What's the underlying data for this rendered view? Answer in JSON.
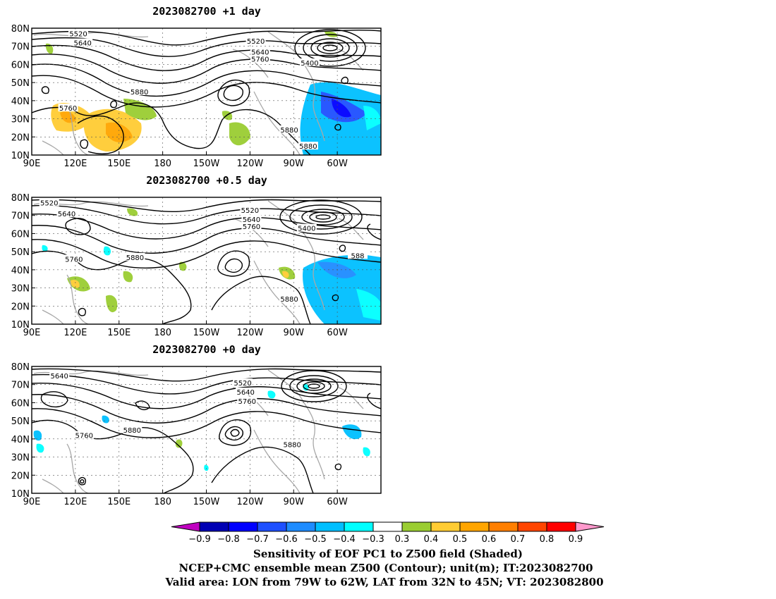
{
  "chart_data": [
    {
      "type": "map",
      "title": "2023082700  +1 day",
      "x_ticks": [
        "90E",
        "120E",
        "150E",
        "180",
        "150W",
        "120W",
        "90W",
        "60W"
      ],
      "y_ticks": [
        "80N",
        "70N",
        "60N",
        "50N",
        "40N",
        "30N",
        "20N",
        "10N"
      ],
      "contour_labels": [
        {
          "text": "5520",
          "lon": 122,
          "lat": 77
        },
        {
          "text": "5640",
          "lon": 125,
          "lat": 72
        },
        {
          "text": "5760",
          "lon": 115,
          "lat": 36
        },
        {
          "text": "5880",
          "lon": 164,
          "lat": 45
        },
        {
          "text": "5520",
          "lon": -116,
          "lat": 73
        },
        {
          "text": "5640",
          "lon": -113,
          "lat": 67
        },
        {
          "text": "5760",
          "lon": -113,
          "lat": 63
        },
        {
          "text": "5400",
          "lon": -79,
          "lat": 61
        },
        {
          "text": "5880",
          "lon": -93,
          "lat": 24
        },
        {
          "text": "5880",
          "lon": -80,
          "lat": 15
        }
      ]
    },
    {
      "type": "map",
      "title": "2023082700  +0.5 day",
      "x_ticks": [
        "90E",
        "120E",
        "150E",
        "180",
        "150W",
        "120W",
        "90W",
        "60W"
      ],
      "y_ticks": [
        "80N",
        "70N",
        "60N",
        "50N",
        "40N",
        "30N",
        "20N",
        "10N"
      ],
      "contour_labels": [
        {
          "text": "5520",
          "lon": 102,
          "lat": 77
        },
        {
          "text": "5640",
          "lon": 114,
          "lat": 71
        },
        {
          "text": "5760",
          "lon": 119,
          "lat": 46
        },
        {
          "text": "5880",
          "lon": 161,
          "lat": 47
        },
        {
          "text": "5520",
          "lon": -120,
          "lat": 73
        },
        {
          "text": "5640",
          "lon": -119,
          "lat": 68
        },
        {
          "text": "5760",
          "lon": -119,
          "lat": 64
        },
        {
          "text": "5400",
          "lon": -81,
          "lat": 63
        },
        {
          "text": "5880",
          "lon": -93,
          "lat": 24
        },
        {
          "text": "588",
          "lon": -46,
          "lat": 48
        }
      ]
    },
    {
      "type": "map",
      "title": "2023082700  +0 day",
      "x_ticks": [
        "90E",
        "120E",
        "150E",
        "180",
        "150W",
        "120W",
        "90W",
        "60W"
      ],
      "y_ticks": [
        "80N",
        "70N",
        "60N",
        "50N",
        "40N",
        "30N",
        "20N",
        "10N"
      ],
      "contour_labels": [
        {
          "text": "5640",
          "lon": 109,
          "lat": 75
        },
        {
          "text": "5520",
          "lon": -125,
          "lat": 71
        },
        {
          "text": "5640",
          "lon": -123,
          "lat": 66
        },
        {
          "text": "5760",
          "lon": -122,
          "lat": 61
        },
        {
          "text": "5880",
          "lon": 159,
          "lat": 45
        },
        {
          "text": "5760",
          "lon": 126,
          "lat": 42
        },
        {
          "text": "5880",
          "lon": -91,
          "lat": 37
        }
      ]
    }
  ],
  "colorbar": {
    "labels": [
      "-0.9",
      "-0.8",
      "-0.7",
      "-0.6",
      "-0.5",
      "-0.4",
      "-0.3",
      "0.3",
      "0.4",
      "0.5",
      "0.6",
      "0.7",
      "0.8",
      "0.9"
    ],
    "colors": [
      "#c000c0",
      "#0000b4",
      "#0000ff",
      "#1e50ff",
      "#1e8cff",
      "#00bfff",
      "#00ffff",
      "#ffffff",
      "#9acd32",
      "#ffcc33",
      "#ffa500",
      "#ff7f00",
      "#ff4500",
      "#ff0000",
      "#ff99cc"
    ]
  },
  "caption": {
    "line1": "Sensitivity of EOF PC1 to Z500 field (Shaded)",
    "line2": "NCEP+CMC ensemble mean Z500 (Contour); unit(m); IT:2023082700",
    "line3": "Valid area: LON from 79W to 62W, LAT from 32N to 45N; VT: 2023082800"
  }
}
